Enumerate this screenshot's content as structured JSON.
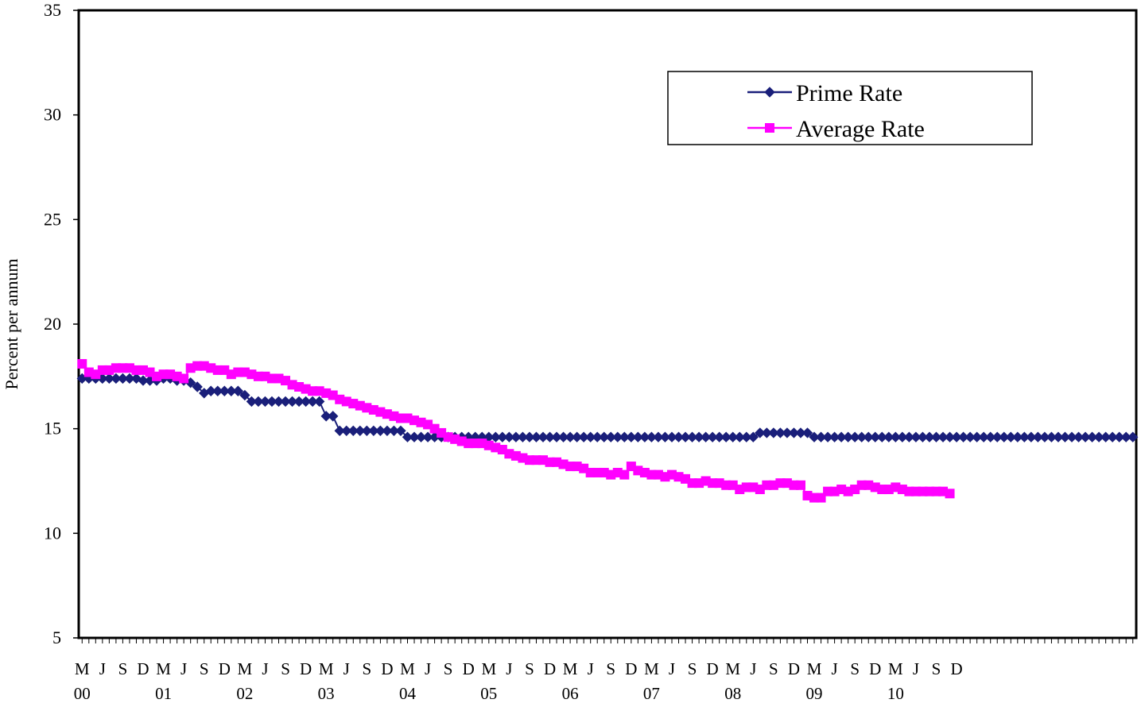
{
  "chart_data": {
    "type": "line",
    "title": "",
    "ylabel": "Percent per annum",
    "xlabel": "",
    "ylim": [
      5,
      35
    ],
    "yticks": [
      5,
      10,
      15,
      20,
      25,
      30,
      35
    ],
    "grid": false,
    "legend_position": "top-right",
    "x_start": "2000-03",
    "x_end": "2010-12",
    "x_tick_labels": [
      "M",
      "J",
      "S",
      "D",
      "M",
      "J",
      "S",
      "D",
      "M",
      "J",
      "S",
      "D",
      "M",
      "J",
      "S",
      "D",
      "M",
      "J",
      "S",
      "D",
      "M",
      "J",
      "S",
      "D",
      "M",
      "J",
      "S",
      "D",
      "M",
      "J",
      "S",
      "D",
      "M",
      "J",
      "S",
      "D",
      "M",
      "J",
      "S",
      "D",
      "M",
      "J",
      "S",
      "D"
    ],
    "x_year_labels": [
      "00",
      "01",
      "02",
      "03",
      "04",
      "05",
      "06",
      "07",
      "08",
      "09",
      "10"
    ],
    "series": [
      {
        "name": "Prime Rate",
        "color": "#1a1f7a",
        "marker": "diamond",
        "values": [
          17.4,
          17.4,
          17.4,
          17.4,
          17.4,
          17.4,
          17.4,
          17.4,
          17.4,
          17.3,
          17.3,
          17.3,
          17.4,
          17.4,
          17.3,
          17.3,
          17.2,
          17.0,
          16.7,
          16.8,
          16.8,
          16.8,
          16.8,
          16.8,
          16.6,
          16.3,
          16.3,
          16.3,
          16.3,
          16.3,
          16.3,
          16.3,
          16.3,
          16.3,
          16.3,
          16.3,
          15.6,
          15.6,
          14.9,
          14.9,
          14.9,
          14.9,
          14.9,
          14.9,
          14.9,
          14.9,
          14.9,
          14.9,
          14.6,
          14.6,
          14.6,
          14.6,
          14.6,
          14.6,
          14.6,
          14.6,
          14.6,
          14.6,
          14.6,
          14.6,
          14.6,
          14.6,
          14.6,
          14.6,
          14.6,
          14.6,
          14.6,
          14.6,
          14.6,
          14.6,
          14.6,
          14.6,
          14.6,
          14.6,
          14.6,
          14.6,
          14.6,
          14.6,
          14.6,
          14.6,
          14.6,
          14.6,
          14.6,
          14.6,
          14.6,
          14.6,
          14.6,
          14.6,
          14.6,
          14.6,
          14.6,
          14.6,
          14.6,
          14.6,
          14.6,
          14.6,
          14.6,
          14.6,
          14.6,
          14.6,
          14.8,
          14.8,
          14.8,
          14.8,
          14.8,
          14.8,
          14.8,
          14.8,
          14.6,
          14.6,
          14.6,
          14.6,
          14.6,
          14.6,
          14.6,
          14.6,
          14.6,
          14.6,
          14.6,
          14.6,
          14.6,
          14.6,
          14.6,
          14.6,
          14.6,
          14.6,
          14.6,
          14.6,
          14.6,
          14.6,
          14.6,
          14.6,
          14.6,
          14.6,
          14.6,
          14.6,
          14.6,
          14.6,
          14.6,
          14.6,
          14.6,
          14.6,
          14.6,
          14.6,
          14.6,
          14.6,
          14.6,
          14.6,
          14.6,
          14.6,
          14.6,
          14.6,
          14.6,
          14.6,
          14.6,
          14.6
        ]
      },
      {
        "name": "Average Rate",
        "color": "#ff00ff",
        "marker": "square",
        "values": [
          18.1,
          17.7,
          17.6,
          17.8,
          17.8,
          17.9,
          17.9,
          17.9,
          17.8,
          17.8,
          17.7,
          17.5,
          17.6,
          17.6,
          17.5,
          17.4,
          17.9,
          18.0,
          18.0,
          17.9,
          17.8,
          17.8,
          17.6,
          17.7,
          17.7,
          17.6,
          17.5,
          17.5,
          17.4,
          17.4,
          17.3,
          17.1,
          17.0,
          16.9,
          16.8,
          16.8,
          16.7,
          16.6,
          16.4,
          16.3,
          16.2,
          16.1,
          16.0,
          15.9,
          15.8,
          15.7,
          15.6,
          15.5,
          15.5,
          15.4,
          15.3,
          15.2,
          15.0,
          14.8,
          14.6,
          14.5,
          14.4,
          14.3,
          14.3,
          14.3,
          14.2,
          14.1,
          14.0,
          13.8,
          13.7,
          13.6,
          13.5,
          13.5,
          13.5,
          13.4,
          13.4,
          13.3,
          13.2,
          13.2,
          13.1,
          12.9,
          12.9,
          12.9,
          12.8,
          12.9,
          12.8,
          13.2,
          13.0,
          12.9,
          12.8,
          12.8,
          12.7,
          12.8,
          12.7,
          12.6,
          12.4,
          12.4,
          12.5,
          12.4,
          12.4,
          12.3,
          12.3,
          12.1,
          12.2,
          12.2,
          12.1,
          12.3,
          12.3,
          12.4,
          12.4,
          12.3,
          12.3,
          11.8,
          11.7,
          11.7,
          12.0,
          12.0,
          12.1,
          12.0,
          12.1,
          12.3,
          12.3,
          12.2,
          12.1,
          12.1,
          12.2,
          12.1,
          12.0,
          12.0,
          12.0,
          12.0,
          12.0,
          12.0,
          11.9
        ]
      }
    ]
  }
}
